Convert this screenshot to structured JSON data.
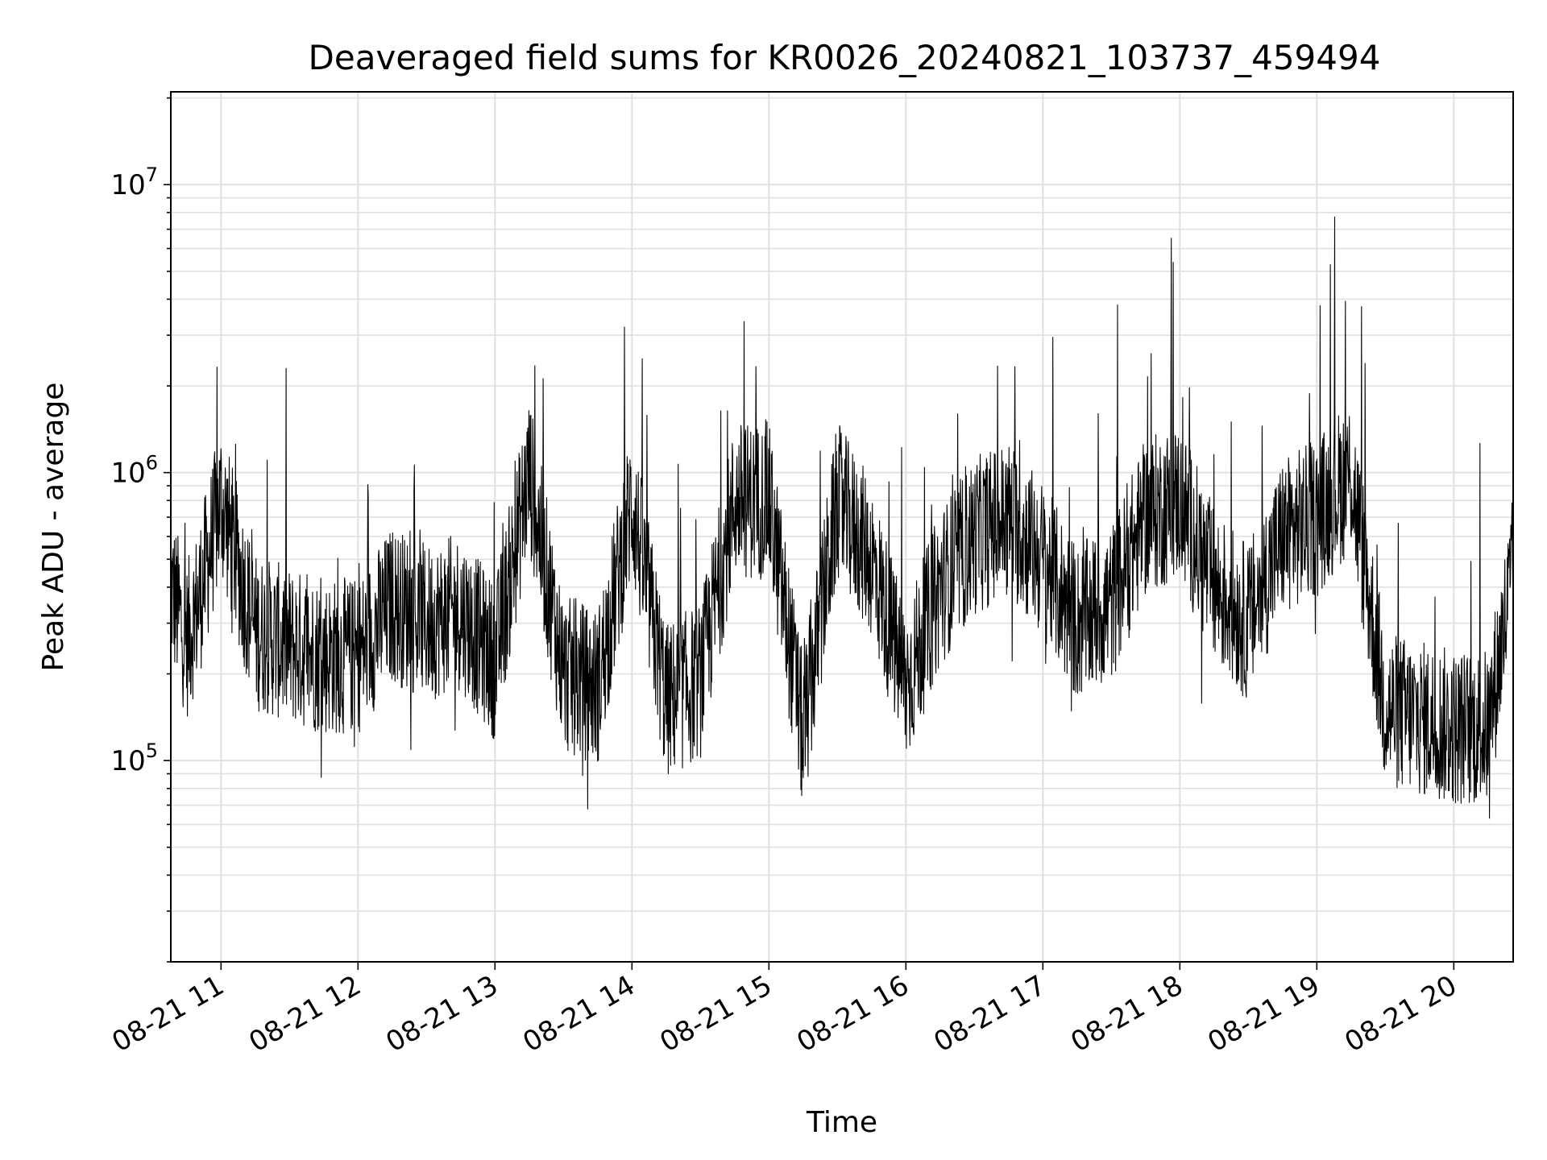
{
  "chart_data": {
    "type": "line",
    "title": "Deaveraged field sums for KR0026_20240821_103737_459494",
    "xlabel": "Time",
    "ylabel": "Peak ADU - average",
    "yscale": "log",
    "ylim": [
      20000,
      21000000
    ],
    "xlim": [
      "2024-08-21 10:38",
      "2024-08-21 20:26"
    ],
    "grid": true,
    "x_ticks": [
      "08-21 11",
      "08-21 12",
      "08-21 13",
      "08-21 14",
      "08-21 15",
      "08-21 16",
      "08-21 17",
      "08-21 18",
      "08-21 19",
      "08-21 20"
    ],
    "y_ticks": [
      {
        "value": 100000,
        "base": "10",
        "exp": "5"
      },
      {
        "value": 1000000,
        "base": "10",
        "exp": "6"
      },
      {
        "value": 10000000,
        "base": "10",
        "exp": "7"
      }
    ],
    "series": [
      {
        "color": "#000000",
        "x": [
          "2024-08-21 10:38",
          "2024-08-21 10:45",
          "2024-08-21 10:50",
          "2024-08-21 11:00",
          "2024-08-21 11:15",
          "2024-08-21 11:30",
          "2024-08-21 11:45",
          "2024-08-21 12:00",
          "2024-08-21 12:15",
          "2024-08-21 12:30",
          "2024-08-21 12:45",
          "2024-08-21 13:00",
          "2024-08-21 13:15",
          "2024-08-21 13:30",
          "2024-08-21 13:45",
          "2024-08-21 14:00",
          "2024-08-21 14:15",
          "2024-08-21 14:30",
          "2024-08-21 14:45",
          "2024-08-21 15:00",
          "2024-08-21 15:15",
          "2024-08-21 15:30",
          "2024-08-21 15:45",
          "2024-08-21 16:00",
          "2024-08-21 16:15",
          "2024-08-21 16:30",
          "2024-08-21 16:45",
          "2024-08-21 17:00",
          "2024-08-21 17:15",
          "2024-08-21 17:30",
          "2024-08-21 17:45",
          "2024-08-21 18:00",
          "2024-08-21 18:15",
          "2024-08-21 18:30",
          "2024-08-21 18:45",
          "2024-08-21 19:00",
          "2024-08-21 19:15",
          "2024-08-21 19:30",
          "2024-08-21 19:45",
          "2024-08-21 20:00",
          "2024-08-21 20:15",
          "2024-08-21 20:26"
        ],
        "y": [
          400000,
          260000,
          350000,
          800000,
          280000,
          250000,
          230000,
          230000,
          350000,
          300000,
          330000,
          220000,
          1000000,
          200000,
          180000,
          800000,
          160000,
          190000,
          800000,
          800000,
          120000,
          800000,
          500000,
          180000,
          400000,
          600000,
          700000,
          500000,
          300000,
          350000,
          700000,
          800000,
          400000,
          300000,
          600000,
          700000,
          1000000,
          150000,
          140000,
          130000,
          130000,
          450000
        ]
      }
    ]
  }
}
